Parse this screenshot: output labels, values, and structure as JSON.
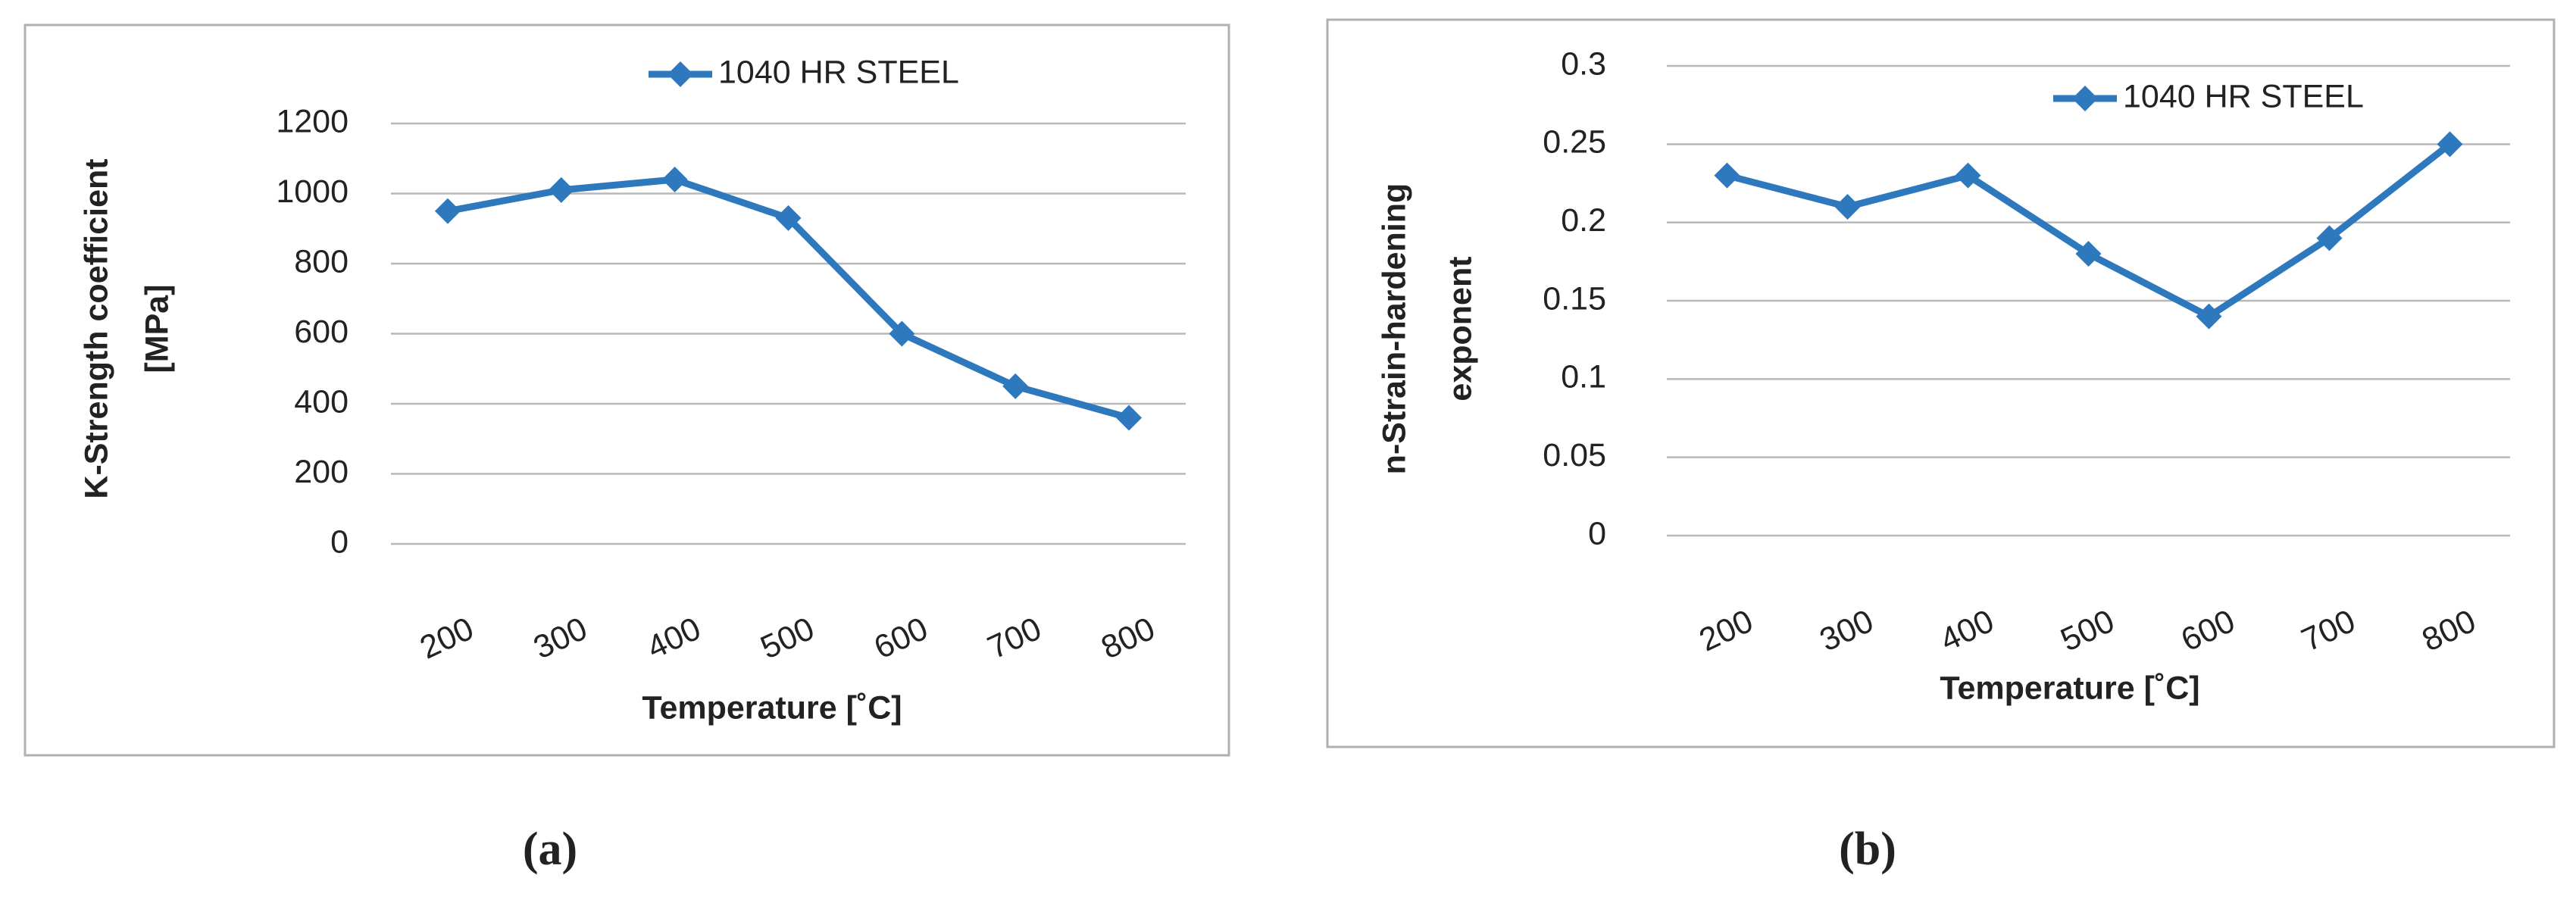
{
  "chart_data": [
    {
      "type": "line",
      "caption": "(a)",
      "ylabel": [
        "K-Strength coefficient",
        "[MPa]"
      ],
      "xlabel": "Temperature [˚C]",
      "categories": [
        "200",
        "300",
        "400",
        "500",
        "600",
        "700",
        "800"
      ],
      "series": [
        {
          "name": "1040 HR STEEL",
          "color": "#2e78bd",
          "values": [
            950,
            1010,
            1040,
            930,
            600,
            450,
            360
          ]
        }
      ],
      "ylim": [
        0,
        1200
      ],
      "yticks": [
        0,
        200,
        400,
        600,
        800,
        1000,
        1200
      ],
      "grid": true,
      "legend": "top-center"
    },
    {
      "type": "line",
      "caption": "(b)",
      "ylabel": [
        "n-Strain-hardening",
        "exponent"
      ],
      "xlabel": "Temperature [˚C]",
      "categories": [
        "200",
        "300",
        "400",
        "500",
        "600",
        "700",
        "800"
      ],
      "series": [
        {
          "name": "1040 HR STEEL",
          "color": "#2e78bd",
          "values": [
            0.23,
            0.21,
            0.23,
            0.18,
            0.14,
            0.19,
            0.25
          ]
        }
      ],
      "ylim": [
        0,
        0.3
      ],
      "yticks": [
        0,
        0.05,
        0.1,
        0.15,
        0.2,
        0.25,
        0.3
      ],
      "grid": true,
      "legend": "top-right"
    }
  ]
}
